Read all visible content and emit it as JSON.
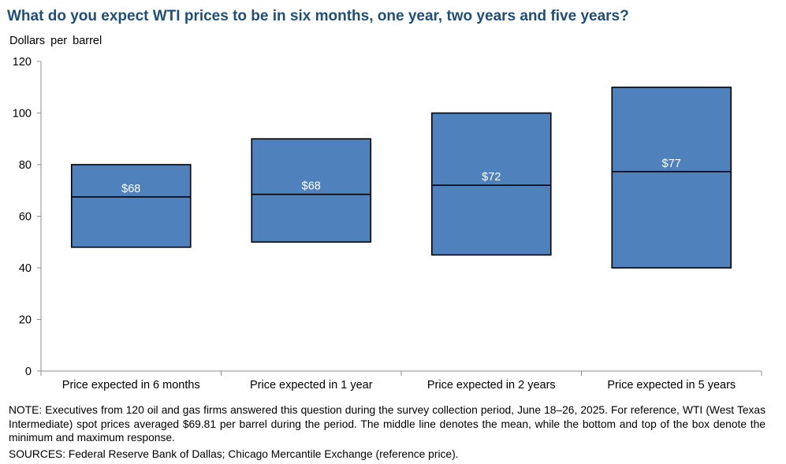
{
  "chart_data": {
    "type": "box",
    "title": "What do you expect WTI prices to be in six months, one year, two years and five years?",
    "ylabel": "Dollars  per barrel",
    "ylim": [
      0,
      120
    ],
    "yticks": [
      0,
      20,
      40,
      60,
      80,
      100,
      120
    ],
    "categories": [
      "Price expected in 6 months",
      "Price expected in 1 year",
      "Price expected in 2 years",
      "Price expected in 5 years"
    ],
    "min": [
      48,
      50,
      45,
      40
    ],
    "max": [
      80,
      90,
      100,
      110
    ],
    "mean": [
      67.5,
      68.5,
      72,
      77.3
    ],
    "mean_labels": [
      "$68",
      "$68",
      "$72",
      "$77"
    ],
    "box_color": "#4F81BD",
    "grid": false
  },
  "note": "NOTE:  Executives  from 120 oil and gas firms answered this question during the survey collection period, June 18–26, 2025. For reference, WTI (West Texas  Intermediate)  spot prices averaged $69.81 per barrel during the period. The middle line denotes the mean, while the bottom  and top of the box denote the minimum  and maximum  response.",
  "sources": "SOURCES:  Federal Reserve Bank of Dallas;  Chicago Mercantile Exchange  (reference price)."
}
